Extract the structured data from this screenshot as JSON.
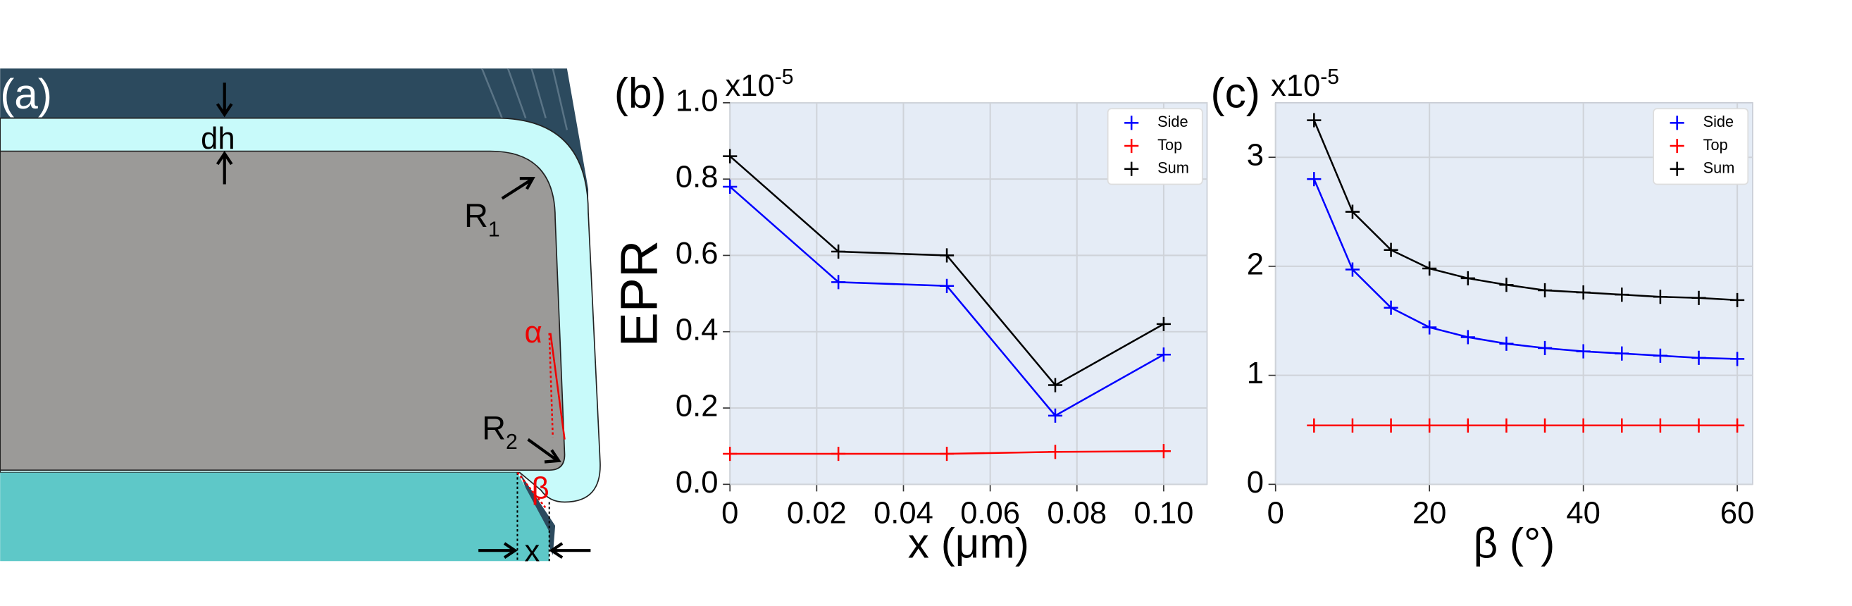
{
  "diagram": {
    "panel_label": "(a)",
    "dh": "dh",
    "r1": {
      "base": "R",
      "sub": "1"
    },
    "alpha": "α",
    "r2": {
      "base": "R",
      "sub": "2"
    },
    "beta": "β",
    "x": "x"
  },
  "chart_data": [
    {
      "type": "line",
      "panel_label": "(b)",
      "offset_text": {
        "base": "x10",
        "exponent": "-5"
      },
      "xlabel": "x (μm)",
      "ylabel": "EPR",
      "x": [
        0,
        0.025,
        0.05,
        0.075,
        0.1
      ],
      "series": [
        {
          "name": "Side",
          "color": "#0000ff",
          "values": [
            0.78,
            0.53,
            0.52,
            0.18,
            0.34
          ]
        },
        {
          "name": "Top",
          "color": "#ff0000",
          "values": [
            0.08,
            0.08,
            0.08,
            0.085,
            0.087
          ]
        },
        {
          "name": "Sum",
          "color": "#000000",
          "values": [
            0.86,
            0.61,
            0.6,
            0.26,
            0.42
          ]
        }
      ],
      "xlim": [
        0,
        0.11
      ],
      "ylim": [
        0,
        1.0
      ],
      "xticks": [
        0,
        0.02,
        0.04,
        0.06,
        0.08,
        {
          "value": 0.1,
          "label": "0.10"
        }
      ],
      "yticks": [
        {
          "value": 0,
          "label": "0.0"
        },
        0.2,
        0.4,
        0.6,
        0.8,
        {
          "value": 1.0,
          "label": "1.0"
        }
      ],
      "grid": true,
      "legend": "upper right"
    },
    {
      "type": "line",
      "panel_label": "(c)",
      "offset_text": {
        "base": "x10",
        "exponent": "-5"
      },
      "xlabel": "β (°)",
      "x": [
        5,
        10,
        15,
        20,
        25,
        30,
        35,
        40,
        45,
        50,
        55,
        60
      ],
      "series": [
        {
          "name": "Side",
          "color": "#0000ff",
          "values": [
            2.8,
            1.97,
            1.62,
            1.44,
            1.35,
            1.29,
            1.25,
            1.22,
            1.2,
            1.18,
            1.16,
            1.15
          ]
        },
        {
          "name": "Top",
          "color": "#ff0000",
          "values": [
            0.54,
            0.54,
            0.54,
            0.54,
            0.54,
            0.54,
            0.54,
            0.54,
            0.54,
            0.54,
            0.54,
            0.54
          ]
        },
        {
          "name": "Sum",
          "color": "#000000",
          "values": [
            3.34,
            2.5,
            2.15,
            1.98,
            1.89,
            1.83,
            1.78,
            1.76,
            1.74,
            1.72,
            1.71,
            1.69
          ]
        }
      ],
      "xlim": [
        0,
        62
      ],
      "ylim": [
        0,
        3.5
      ],
      "xticks": [
        0,
        20,
        40,
        60
      ],
      "yticks": [
        0,
        1,
        2,
        3
      ],
      "grid": true,
      "legend": "upper right"
    }
  ]
}
